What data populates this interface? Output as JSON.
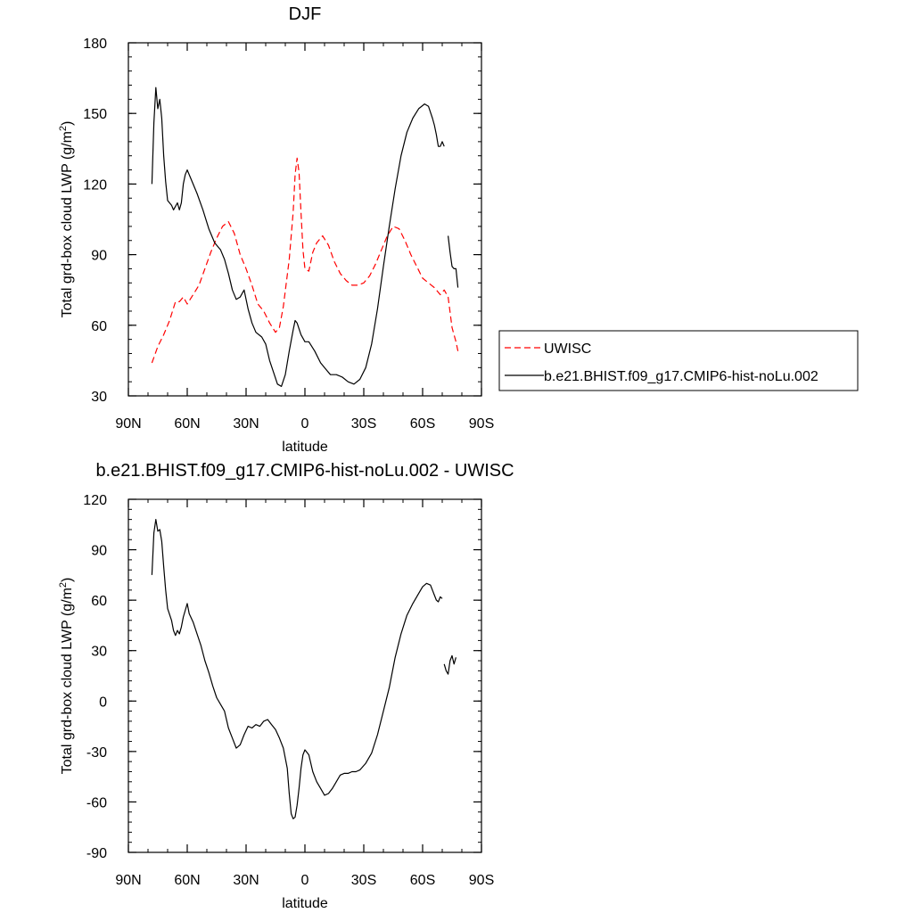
{
  "chart_data": [
    {
      "type": "line",
      "title": "DJF",
      "xlabel": "latitude",
      "ylabel": "Total grd-box cloud LWP (g/m",
      "ylabel_sup": "2",
      "ylabel_close": ")",
      "x_tick_values": [
        90,
        60,
        30,
        0,
        -30,
        -60,
        -90
      ],
      "x_tick_labels": [
        "90N",
        "60N",
        "30N",
        "0",
        "30S",
        "60S",
        "90S"
      ],
      "y_ticks": [
        30,
        60,
        90,
        120,
        150,
        180
      ],
      "xlim": [
        90,
        -90
      ],
      "ylim": [
        30,
        180
      ],
      "legend_position": "right",
      "series": [
        {
          "name": "UWISC",
          "color": "#ff0000",
          "dashed": true,
          "segments": [
            [
              [
                78,
                44
              ],
              [
                75,
                51
              ],
              [
                72,
                56
              ],
              [
                69,
                62
              ],
              [
                66,
                70
              ],
              [
                64,
                70
              ],
              [
                62,
                72
              ],
              [
                60,
                69
              ],
              [
                57,
                73
              ],
              [
                54,
                77
              ],
              [
                51,
                84
              ],
              [
                48,
                91
              ],
              [
                45,
                97
              ],
              [
                42,
                102
              ],
              [
                39,
                104
              ],
              [
                36,
                99
              ],
              [
                33,
                90
              ],
              [
                30,
                84
              ],
              [
                27,
                77
              ],
              [
                24,
                69
              ],
              [
                21,
                66
              ],
              [
                18,
                61
              ],
              [
                15,
                57
              ],
              [
                13,
                59
              ],
              [
                11,
                68
              ],
              [
                8,
                88
              ],
              [
                6,
                108
              ],
              [
                5,
                124
              ],
              [
                4,
                131
              ],
              [
                3,
                125
              ],
              [
                2,
                108
              ],
              [
                1,
                92
              ],
              [
                0,
                84
              ],
              [
                -2,
                83
              ],
              [
                -4,
                91
              ],
              [
                -6,
                95
              ],
              [
                -9,
                98
              ],
              [
                -12,
                94
              ],
              [
                -15,
                87
              ],
              [
                -18,
                82
              ],
              [
                -21,
                79
              ],
              [
                -24,
                77
              ],
              [
                -27,
                77
              ],
              [
                -30,
                78
              ],
              [
                -33,
                81
              ],
              [
                -36,
                86
              ],
              [
                -39,
                92
              ],
              [
                -42,
                98
              ],
              [
                -45,
                102
              ],
              [
                -48,
                101
              ],
              [
                -51,
                96
              ],
              [
                -54,
                90
              ],
              [
                -57,
                85
              ],
              [
                -60,
                80
              ],
              [
                -63,
                78
              ],
              [
                -66,
                76
              ],
              [
                -69,
                73
              ],
              [
                -71,
                75
              ],
              [
                -73,
                72
              ],
              [
                -75,
                59
              ],
              [
                -77,
                53
              ],
              [
                -78,
                49
              ]
            ]
          ]
        },
        {
          "name": "b.e21.BHIST.f09_g17.CMIP6-hist-noLu.002",
          "color": "#000000",
          "dashed": false,
          "segments": [
            [
              [
                78,
                120
              ],
              [
                77,
                146
              ],
              [
                76,
                161
              ],
              [
                75,
                152
              ],
              [
                74,
                156
              ],
              [
                73,
                148
              ],
              [
                72,
                132
              ],
              [
                71,
                121
              ],
              [
                70,
                113
              ],
              [
                68,
                111
              ],
              [
                67,
                109
              ],
              [
                65,
                112
              ],
              [
                64,
                109
              ],
              [
                63,
                112
              ],
              [
                62,
                120
              ],
              [
                61,
                124
              ],
              [
                60,
                126
              ],
              [
                58,
                122
              ],
              [
                55,
                116
              ],
              [
                52,
                109
              ],
              [
                49,
                101
              ],
              [
                46,
                95
              ],
              [
                43,
                92
              ],
              [
                41,
                88
              ],
              [
                39,
                82
              ],
              [
                37,
                75
              ],
              [
                35,
                71
              ],
              [
                33,
                72
              ],
              [
                31,
                75
              ],
              [
                29,
                67
              ],
              [
                27,
                61
              ],
              [
                25,
                57
              ],
              [
                22,
                55
              ],
              [
                20,
                52
              ],
              [
                18,
                45
              ],
              [
                16,
                40
              ],
              [
                14,
                35
              ],
              [
                12,
                34
              ],
              [
                10,
                39
              ],
              [
                8,
                49
              ],
              [
                6,
                58
              ],
              [
                5,
                62
              ],
              [
                4,
                61
              ],
              [
                2,
                56
              ],
              [
                0,
                53
              ],
              [
                -2,
                53
              ],
              [
                -5,
                49
              ],
              [
                -8,
                44
              ],
              [
                -11,
                41
              ],
              [
                -13,
                39
              ],
              [
                -16,
                39
              ],
              [
                -19,
                38
              ],
              [
                -22,
                36
              ],
              [
                -25,
                35
              ],
              [
                -28,
                37
              ],
              [
                -31,
                42
              ],
              [
                -34,
                52
              ],
              [
                -37,
                67
              ],
              [
                -40,
                85
              ],
              [
                -43,
                102
              ],
              [
                -46,
                118
              ],
              [
                -49,
                132
              ],
              [
                -52,
                142
              ],
              [
                -55,
                148
              ],
              [
                -58,
                152
              ],
              [
                -61,
                154
              ],
              [
                -63,
                153
              ],
              [
                -65,
                148
              ],
              [
                -66,
                145
              ],
              [
                -67,
                141
              ],
              [
                -68,
                136
              ],
              [
                -69,
                136
              ],
              [
                -70,
                138
              ],
              [
                -71,
                136
              ]
            ],
            [
              [
                -73,
                98
              ],
              [
                -74,
                91
              ],
              [
                -75,
                85
              ],
              [
                -76,
                84
              ],
              [
                -77,
                84
              ],
              [
                -78,
                76
              ]
            ]
          ]
        }
      ]
    },
    {
      "type": "line",
      "title": "b.e21.BHIST.f09_g17.CMIP6-hist-noLu.002 - UWISC",
      "xlabel": "latitude",
      "ylabel": "Total grd-box cloud LWP (g/m",
      "ylabel_sup": "2",
      "ylabel_close": ")",
      "x_tick_values": [
        90,
        60,
        30,
        0,
        -30,
        -60,
        -90
      ],
      "x_tick_labels": [
        "90N",
        "60N",
        "30N",
        "0",
        "30S",
        "60S",
        "90S"
      ],
      "y_ticks": [
        -90,
        -60,
        -30,
        0,
        30,
        60,
        90,
        120
      ],
      "xlim": [
        90,
        -90
      ],
      "ylim": [
        -90,
        120
      ],
      "legend_position": "none",
      "series": [
        {
          "color": "#000000",
          "dashed": false,
          "segments": [
            [
              [
                78,
                75
              ],
              [
                77,
                100
              ],
              [
                76,
                108
              ],
              [
                75,
                101
              ],
              [
                74,
                102
              ],
              [
                73,
                95
              ],
              [
                72,
                80
              ],
              [
                71,
                66
              ],
              [
                70,
                55
              ],
              [
                68,
                48
              ],
              [
                67,
                42
              ],
              [
                66,
                39
              ],
              [
                65,
                42
              ],
              [
                64,
                40
              ],
              [
                63,
                44
              ],
              [
                62,
                50
              ],
              [
                61,
                54
              ],
              [
                60,
                58
              ],
              [
                59,
                52
              ],
              [
                57,
                47
              ],
              [
                55,
                40
              ],
              [
                53,
                33
              ],
              [
                51,
                24
              ],
              [
                49,
                17
              ],
              [
                47,
                9
              ],
              [
                45,
                2
              ],
              [
                43,
                -2
              ],
              [
                41,
                -6
              ],
              [
                39,
                -16
              ],
              [
                37,
                -22
              ],
              [
                35,
                -28
              ],
              [
                33,
                -26
              ],
              [
                31,
                -20
              ],
              [
                29,
                -15
              ],
              [
                27,
                -16
              ],
              [
                25,
                -14
              ],
              [
                23,
                -15
              ],
              [
                21,
                -12
              ],
              [
                19,
                -11
              ],
              [
                17,
                -14
              ],
              [
                15,
                -17
              ],
              [
                13,
                -22
              ],
              [
                11,
                -28
              ],
              [
                9,
                -40
              ],
              [
                8,
                -55
              ],
              [
                7,
                -67
              ],
              [
                6,
                -70
              ],
              [
                5,
                -69
              ],
              [
                4,
                -62
              ],
              [
                3,
                -52
              ],
              [
                2,
                -40
              ],
              [
                1,
                -32
              ],
              [
                0,
                -29
              ],
              [
                -2,
                -32
              ],
              [
                -4,
                -42
              ],
              [
                -6,
                -48
              ],
              [
                -8,
                -52
              ],
              [
                -10,
                -56
              ],
              [
                -12,
                -55
              ],
              [
                -14,
                -52
              ],
              [
                -16,
                -48
              ],
              [
                -18,
                -44
              ],
              [
                -20,
                -43
              ],
              [
                -22,
                -43
              ],
              [
                -24,
                -42
              ],
              [
                -26,
                -42
              ],
              [
                -28,
                -41
              ],
              [
                -31,
                -37
              ],
              [
                -34,
                -31
              ],
              [
                -37,
                -20
              ],
              [
                -40,
                -6
              ],
              [
                -43,
                8
              ],
              [
                -46,
                26
              ],
              [
                -49,
                40
              ],
              [
                -52,
                51
              ],
              [
                -55,
                58
              ],
              [
                -58,
                64
              ],
              [
                -60,
                68
              ],
              [
                -62,
                70
              ],
              [
                -64,
                69
              ],
              [
                -65,
                66
              ],
              [
                -66,
                63
              ],
              [
                -67,
                60
              ],
              [
                -68,
                59
              ],
              [
                -69,
                62
              ],
              [
                -70,
                61
              ]
            ],
            [
              [
                -71,
                22
              ],
              [
                -72,
                18
              ],
              [
                -73,
                16
              ],
              [
                -74,
                24
              ],
              [
                -75,
                27
              ],
              [
                -76,
                22
              ],
              [
                -77,
                26
              ]
            ]
          ]
        }
      ]
    }
  ]
}
